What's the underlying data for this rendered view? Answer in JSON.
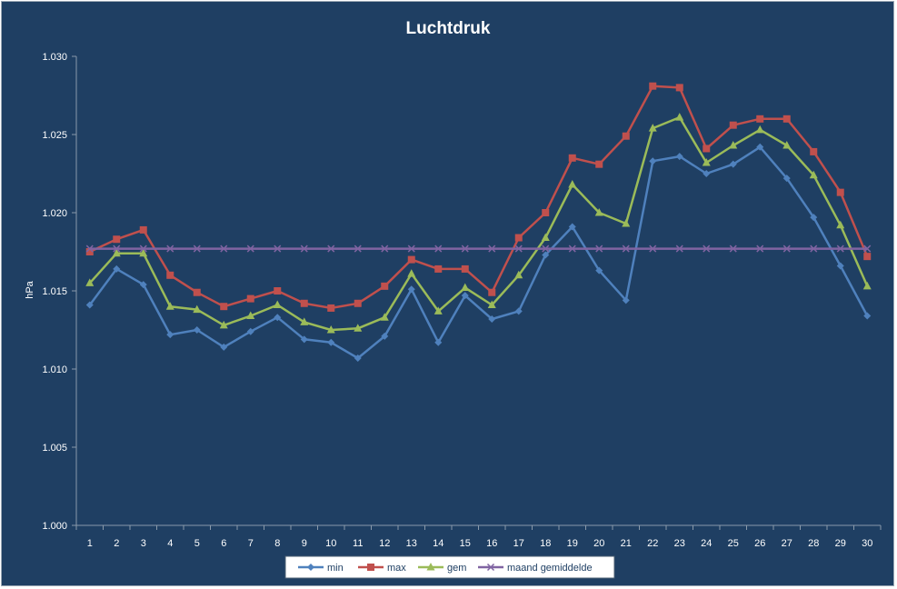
{
  "chart_data": {
    "type": "line",
    "title": "Luchtdruk",
    "ylabel": "hPa",
    "xlabel": "",
    "ylim": [
      1.0,
      1.03
    ],
    "y_ticks": [
      "1.000",
      "1.005",
      "1.010",
      "1.015",
      "1.020",
      "1.025",
      "1.030"
    ],
    "y_tick_values": [
      1.0,
      1.005,
      1.01,
      1.015,
      1.02,
      1.025,
      1.03
    ],
    "categories": [
      "1",
      "2",
      "3",
      "4",
      "5",
      "6",
      "7",
      "8",
      "9",
      "10",
      "11",
      "12",
      "13",
      "14",
      "15",
      "16",
      "17",
      "18",
      "19",
      "20",
      "21",
      "22",
      "23",
      "24",
      "25",
      "26",
      "27",
      "28",
      "29",
      "30"
    ],
    "grid": false,
    "legend_position": "bottom",
    "series": [
      {
        "name": "min",
        "color": "#4f81bd",
        "marker": "diamond",
        "values": [
          1.0141,
          1.0164,
          1.0154,
          1.0122,
          1.0125,
          1.0114,
          1.0124,
          1.0133,
          1.0119,
          1.0117,
          1.0107,
          1.0121,
          1.0151,
          1.0117,
          1.0147,
          1.0132,
          1.0137,
          1.0173,
          1.0191,
          1.0163,
          1.0144,
          1.0233,
          1.0236,
          1.0225,
          1.0231,
          1.0242,
          1.0222,
          1.0197,
          1.0166,
          1.0134
        ]
      },
      {
        "name": "max",
        "color": "#c0504d",
        "marker": "square",
        "values": [
          1.0175,
          1.0183,
          1.0189,
          1.016,
          1.0149,
          1.014,
          1.0145,
          1.015,
          1.0142,
          1.0139,
          1.0142,
          1.0153,
          1.017,
          1.0164,
          1.0164,
          1.0149,
          1.0184,
          1.02,
          1.0235,
          1.0231,
          1.0249,
          1.0281,
          1.028,
          1.0241,
          1.0256,
          1.026,
          1.026,
          1.0239,
          1.0213,
          1.0172
        ]
      },
      {
        "name": "gem",
        "color": "#9bbb59",
        "marker": "triangle",
        "values": [
          1.0155,
          1.0174,
          1.0174,
          1.014,
          1.0138,
          1.0128,
          1.0134,
          1.0141,
          1.013,
          1.0125,
          1.0126,
          1.0133,
          1.0161,
          1.0137,
          1.0152,
          1.0141,
          1.016,
          1.0184,
          1.0218,
          1.02,
          1.0193,
          1.0254,
          1.0261,
          1.0232,
          1.0243,
          1.0253,
          1.0243,
          1.0224,
          1.0192,
          1.0153
        ]
      },
      {
        "name": "maand gemiddelde",
        "color": "#8064a2",
        "marker": "x",
        "values": [
          1.0177,
          1.0177,
          1.0177,
          1.0177,
          1.0177,
          1.0177,
          1.0177,
          1.0177,
          1.0177,
          1.0177,
          1.0177,
          1.0177,
          1.0177,
          1.0177,
          1.0177,
          1.0177,
          1.0177,
          1.0177,
          1.0177,
          1.0177,
          1.0177,
          1.0177,
          1.0177,
          1.0177,
          1.0177,
          1.0177,
          1.0177,
          1.0177,
          1.0177,
          1.0177
        ]
      }
    ]
  }
}
